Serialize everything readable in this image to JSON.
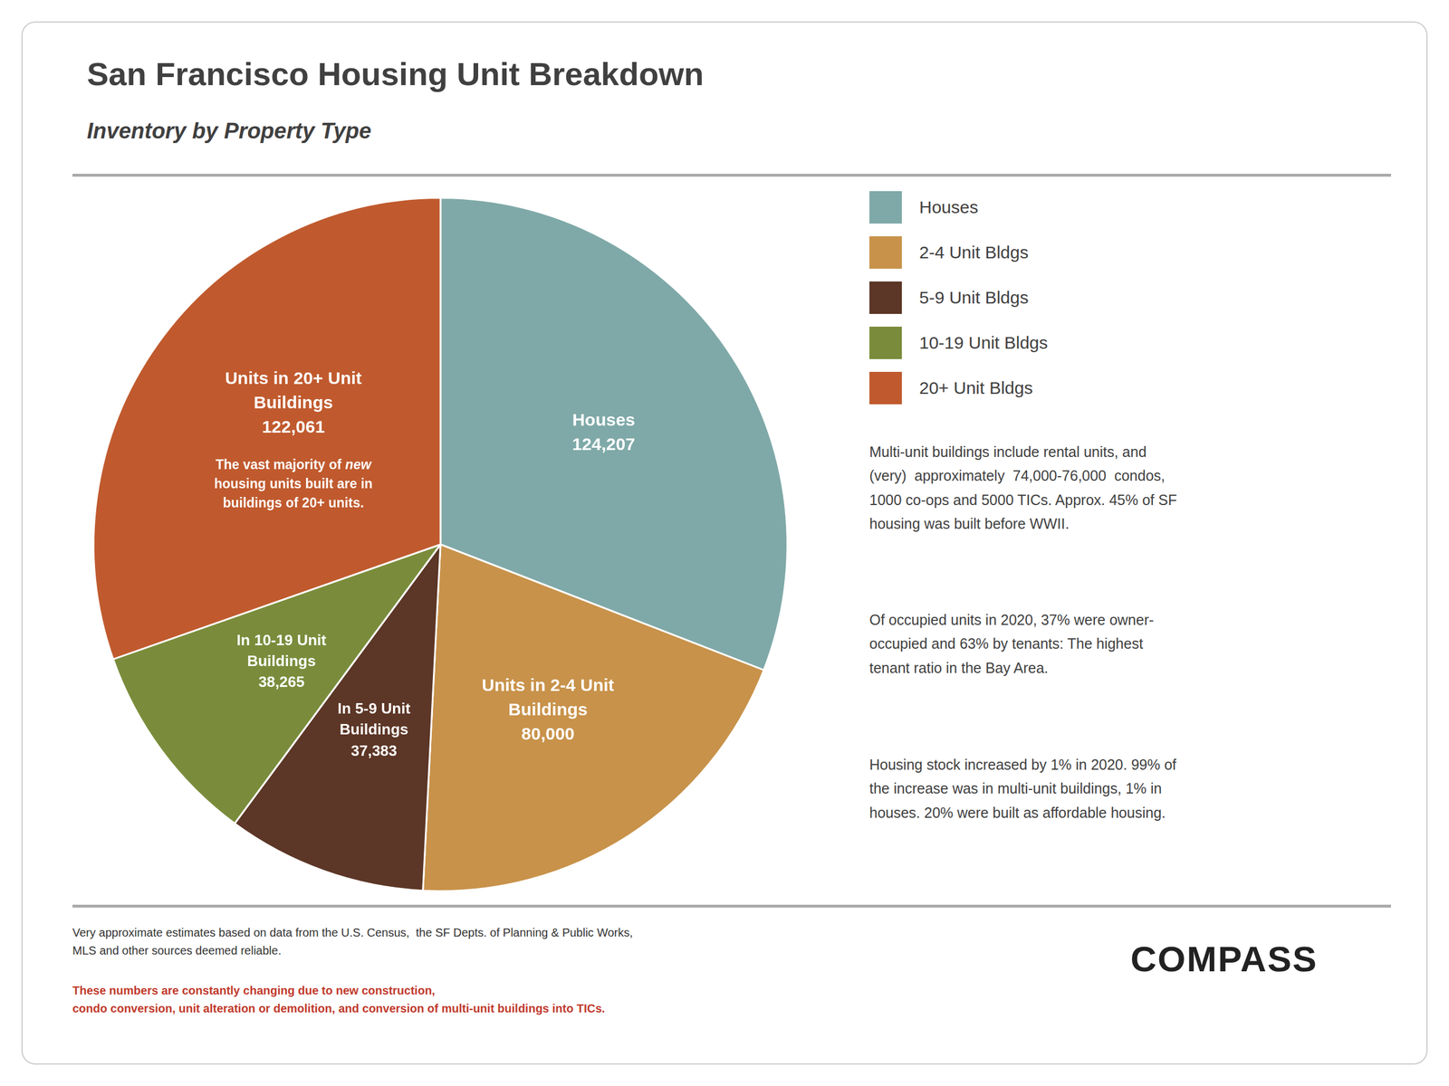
{
  "chart_data": {
    "type": "pie",
    "title": "San Francisco Housing Unit Breakdown",
    "subtitle": "Inventory by Property Type",
    "categories": [
      "Houses",
      "2-4 Unit Bldgs",
      "5-9 Unit Bldgs",
      "10-19 Unit Bldgs",
      "20+ Unit Bldgs"
    ],
    "values": [
      124207,
      80000,
      37383,
      38265,
      122061
    ],
    "colors": [
      "#7fa9a8",
      "#c8924a",
      "#5c3626",
      "#7a8c3b",
      "#c05a2e"
    ],
    "legend": "right",
    "data_labels": true,
    "value_labels": [
      "124,207",
      "80,000",
      "37,383",
      "38,265",
      "122,061"
    ],
    "slice_labels": [
      [
        "Houses"
      ],
      [
        "Units in 2-4 Unit",
        "Buildings"
      ],
      [
        "In 5-9 Unit",
        "Buildings"
      ],
      [
        "In 10-19 Unit",
        "Buildings"
      ],
      [
        "Units in 20+ Unit",
        "Buildings"
      ]
    ],
    "annotation": {
      "category": "20+ Unit Bldgs",
      "lines": [
        "The vast majority of new",
        "housing units built are in",
        "buildings of 20+ units."
      ],
      "italic": "new"
    },
    "side_texts": [
      "Multi-unit buildings include rental units, and\n(very)  approximately  74,000-76,000  condos,\n1000 co-ops and 5000 TICs. Approx. 45% of SF\nhousing was built before WWII.",
      "Of occupied units in 2020, 37% were owner-\noccupied and 63% by tenants: The highest\ntenant ratio in the Bay Area.",
      "Housing stock increased by 1% in 2020. 99% of\nthe increase was in multi-unit buildings, 1% in\nhouses. 20% were built as affordable housing."
    ],
    "footnote": [
      {
        "text": "Very approximate estimates based on data from the U.S. Census,  the SF Depts. of Planning & Public Works,\nMLS and other sources deemed reliable. "
      },
      {
        "text": "These numbers are constantly changing due to new construction,\ncondo conversion, unit alteration or demolition, and conversion of multi-unit buildings into TICs.",
        "color": "#c0392b"
      }
    ],
    "logo": "COMPASS"
  }
}
